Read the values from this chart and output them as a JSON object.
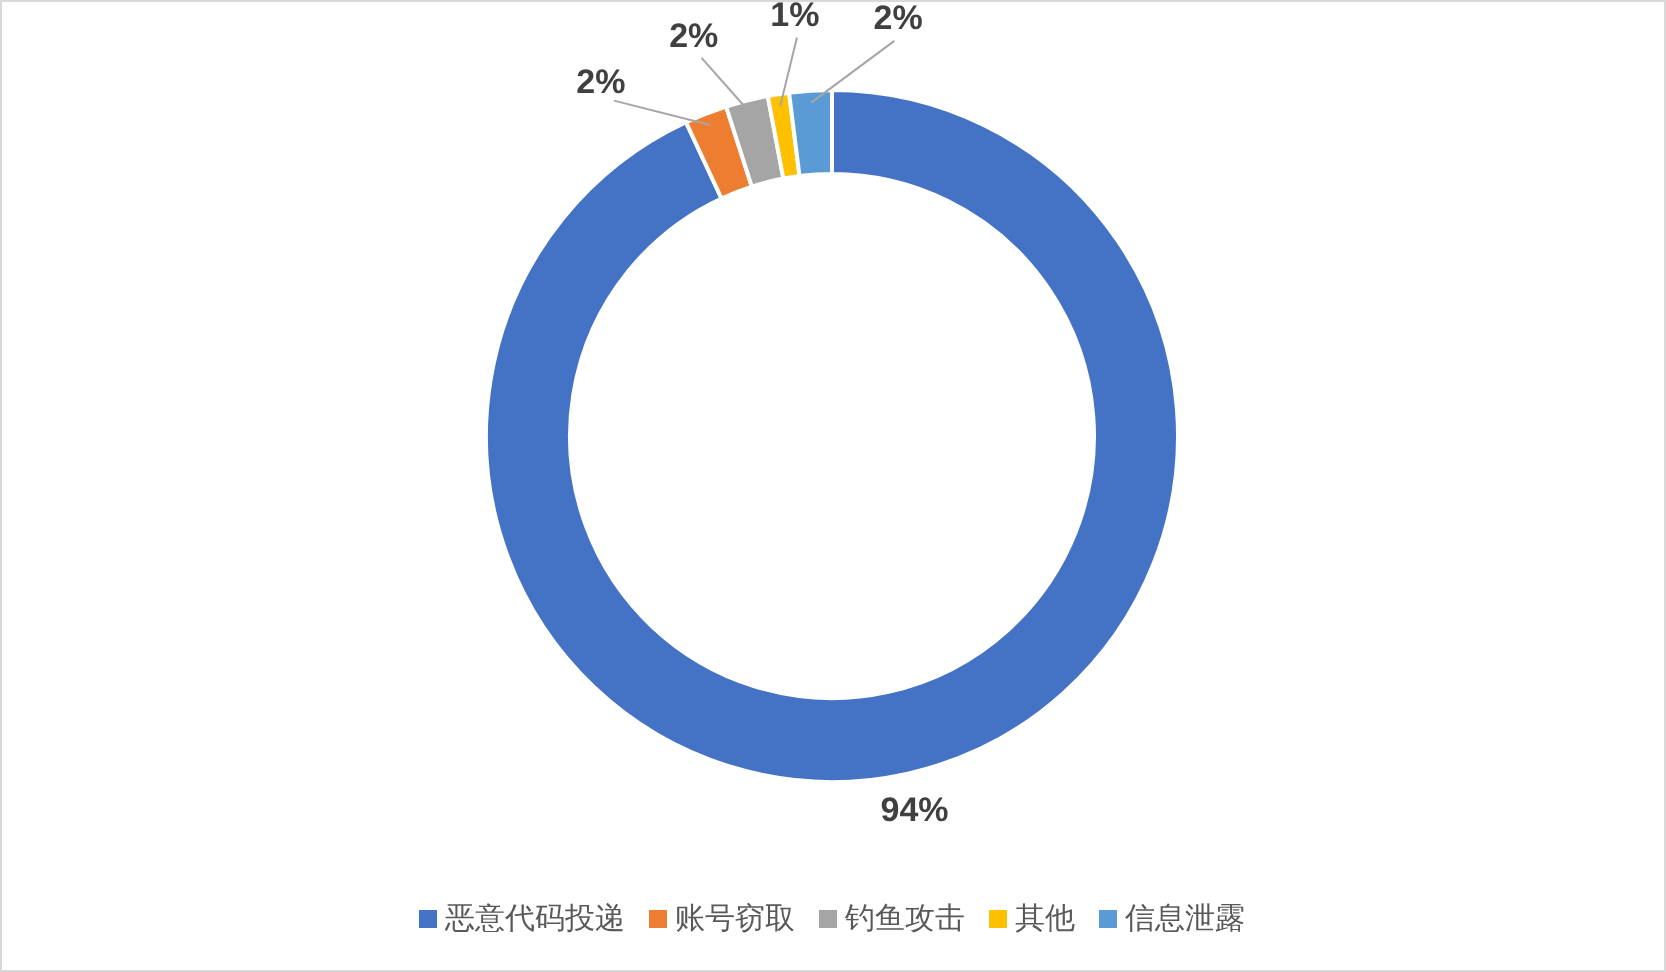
{
  "chart_data": {
    "type": "donut",
    "categories": [
      "恶意代码投递",
      "账号窃取",
      "钓鱼攻击",
      "其他",
      "信息泄露"
    ],
    "values": [
      94,
      2,
      2,
      1,
      2
    ],
    "colors": [
      "#4472c4",
      "#ed7d31",
      "#a5a5a5",
      "#ffc000",
      "#5b9bd5"
    ],
    "value_labels": [
      "94%",
      "2%",
      "2%",
      "1%",
      "2%"
    ],
    "legend": "bottom"
  }
}
